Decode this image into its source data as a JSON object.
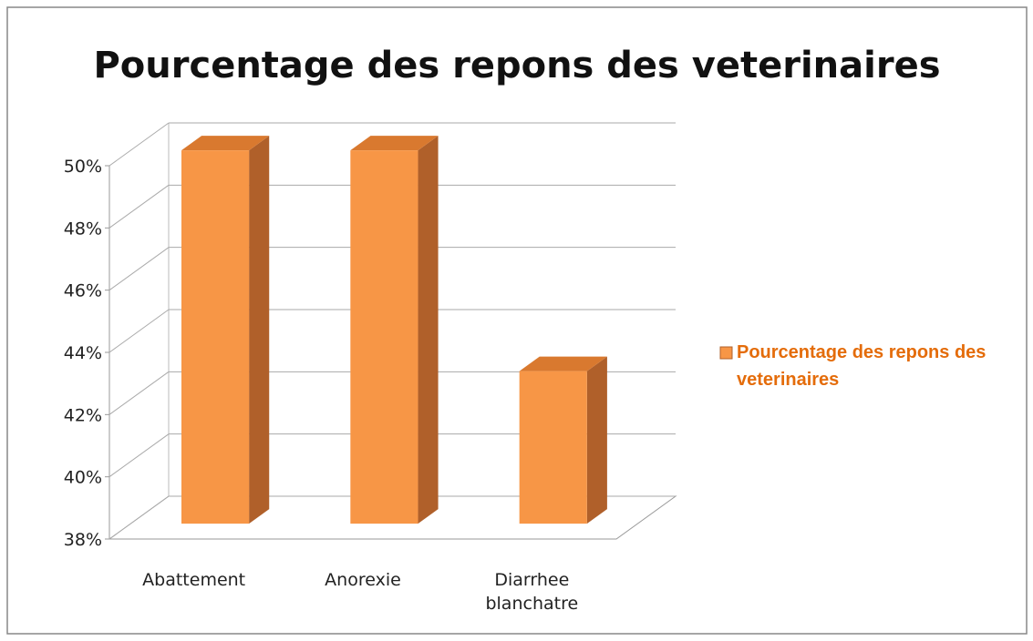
{
  "chart_data": {
    "type": "bar3d",
    "title": "Pourcentage des repons des veterinaires",
    "categories": [
      "Abattement",
      "Anorexie",
      "Diarrhee blanchatre"
    ],
    "series": [
      {
        "name": "Pourcentage des repons des veterinaires",
        "color": "#f79646",
        "values": [
          50,
          50,
          42.9
        ]
      }
    ],
    "ylim": [
      38,
      50
    ],
    "yticks": [
      {
        "value": 38,
        "label": "38%"
      },
      {
        "value": 40,
        "label": "40%"
      },
      {
        "value": 42,
        "label": "42%"
      },
      {
        "value": 44,
        "label": "44%"
      },
      {
        "value": 46,
        "label": "46%"
      },
      {
        "value": 48,
        "label": "48%"
      },
      {
        "value": 50,
        "label": "50%"
      }
    ],
    "grid": true,
    "legend": "right"
  }
}
